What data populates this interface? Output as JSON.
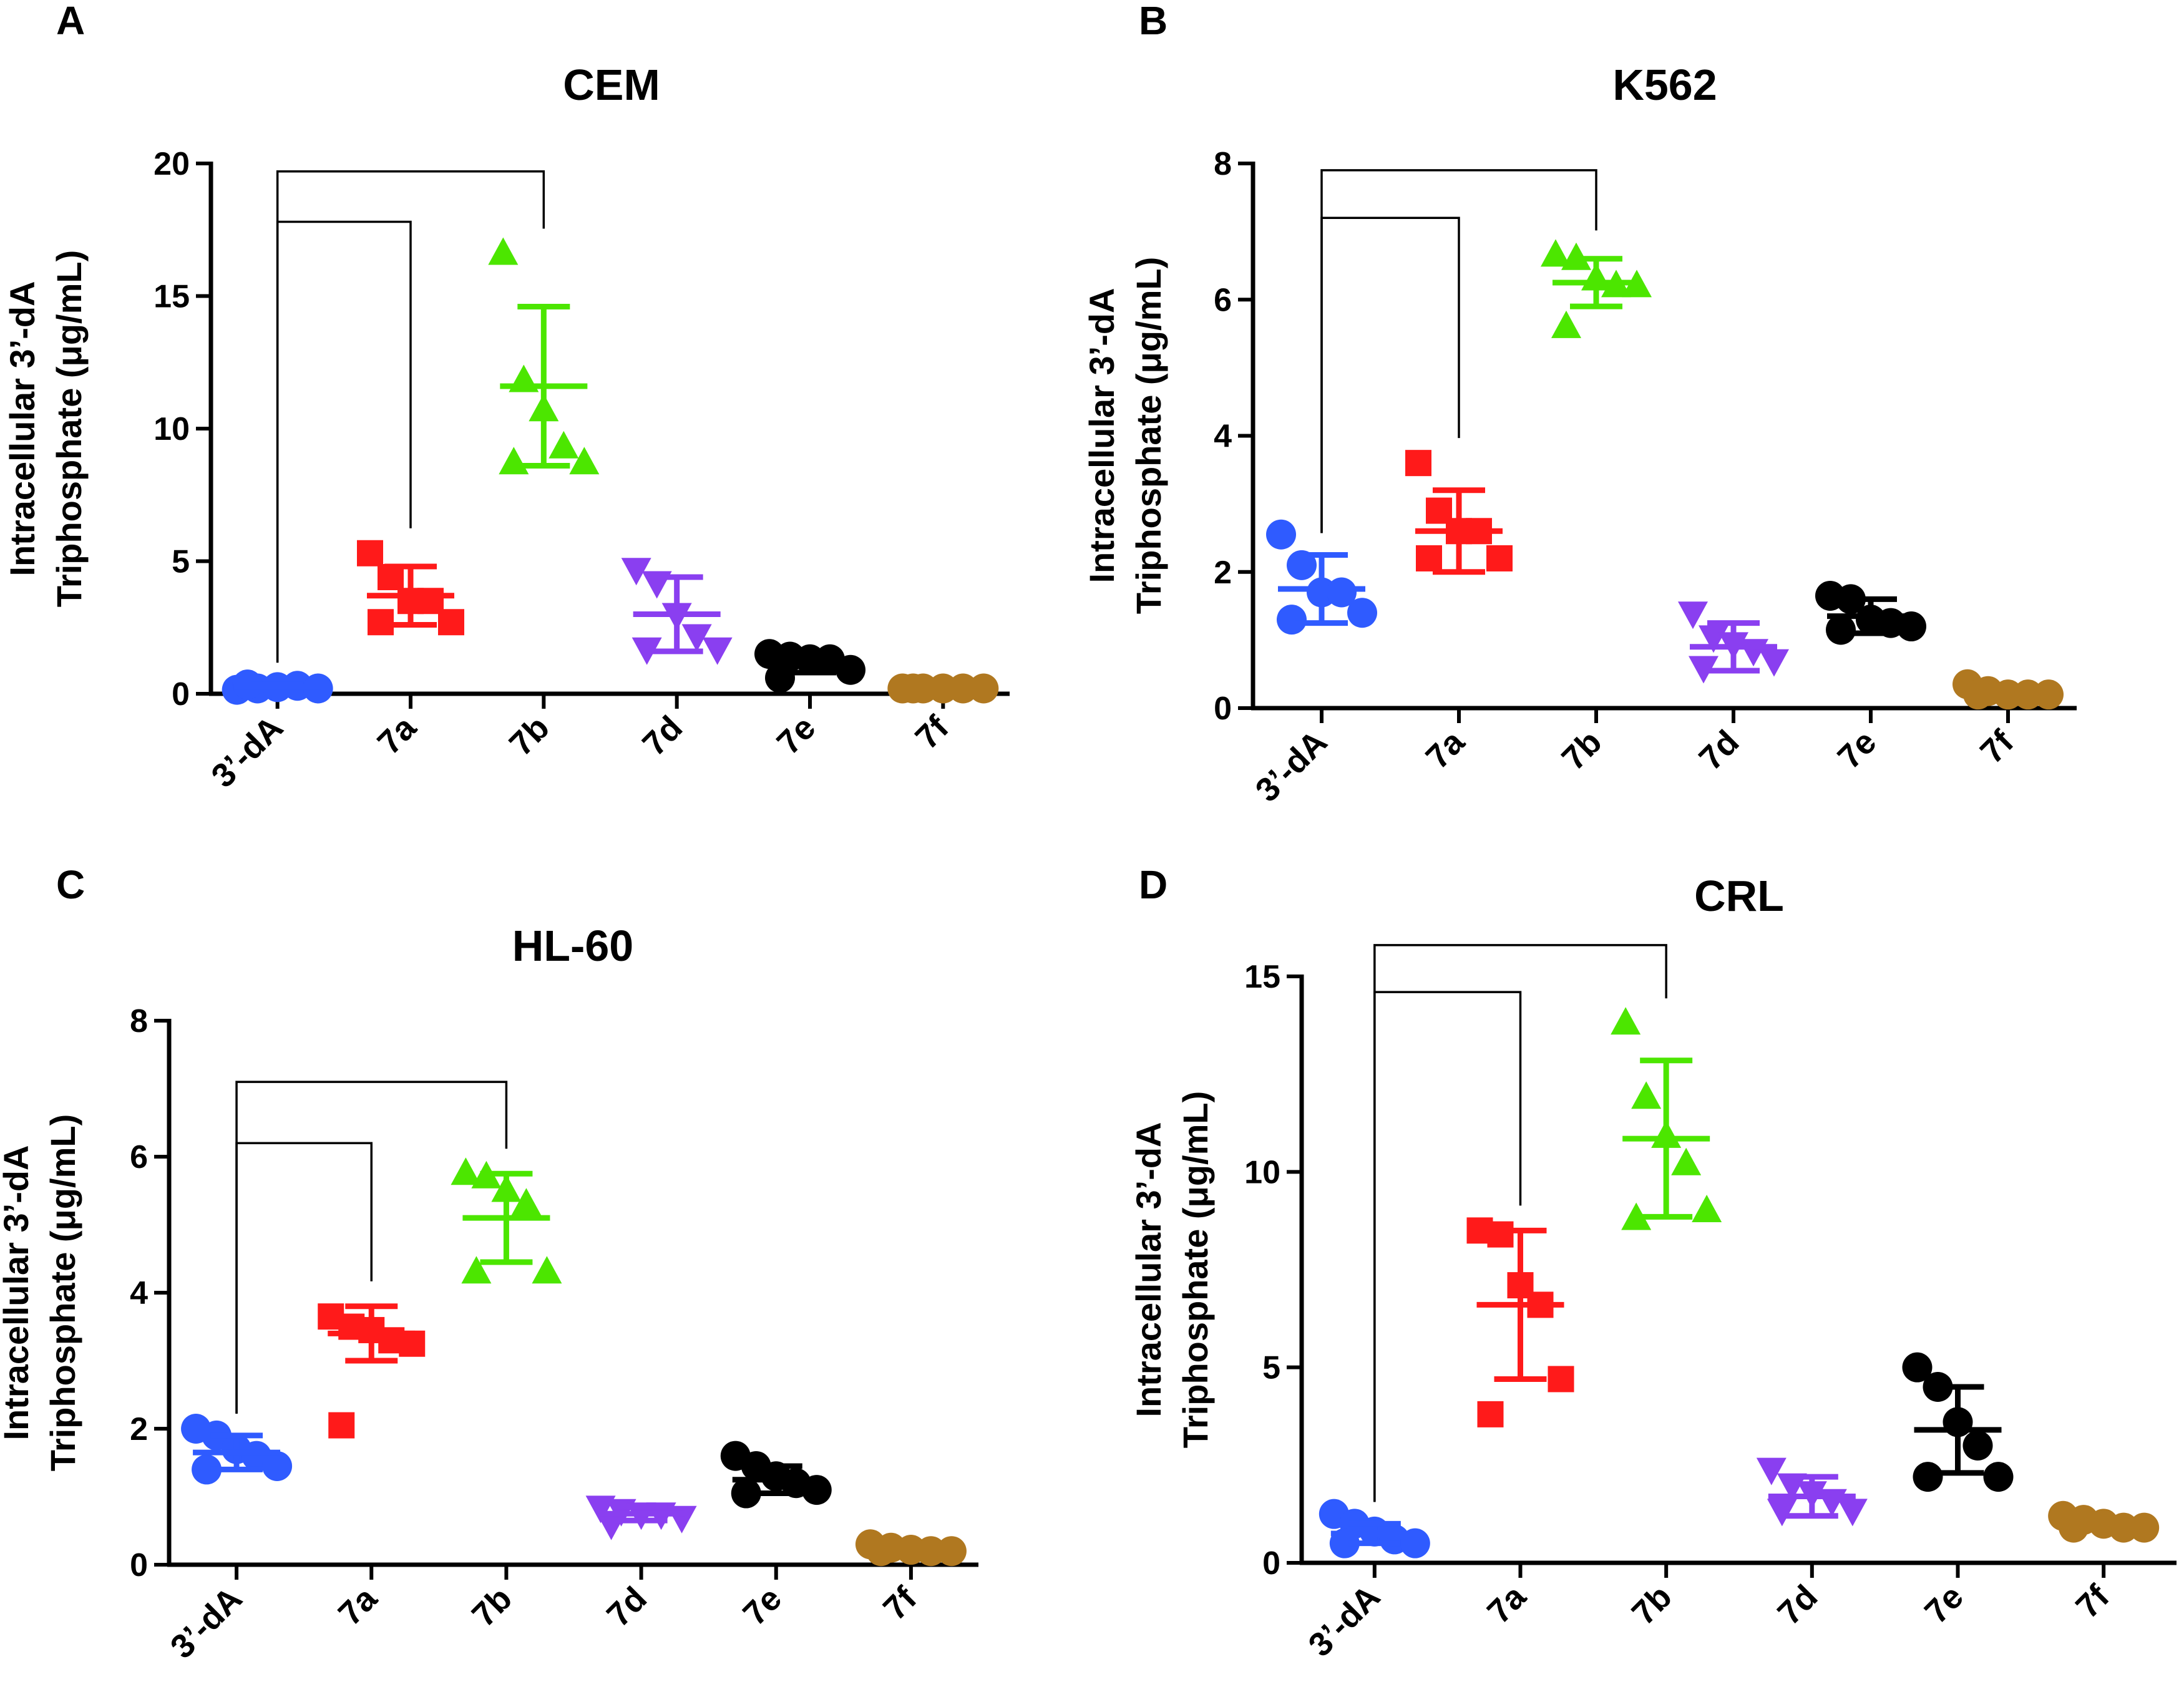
{
  "chart_data": [
    {
      "panel": "A",
      "type": "scatter",
      "title": "CEM",
      "ylabel_lines": [
        "Intracellular 3’-dA",
        "Triphosphate (μg/mL)"
      ],
      "xlabel": "",
      "categories": [
        "3’-dA",
        "7a",
        "7b",
        "7d",
        "7e",
        "7f"
      ],
      "ylim": [
        0,
        20
      ],
      "yticks": [
        0,
        5,
        10,
        15,
        20
      ],
      "grid": false,
      "series": [
        {
          "name": "3’-dA",
          "color": "#2f5bff",
          "marker": "circle",
          "mean": 0.25,
          "sd": 0.1,
          "points": [
            0.15,
            0.2,
            0.25,
            0.3,
            0.2,
            0.35
          ]
        },
        {
          "name": "7a",
          "color": "#ff1a1a",
          "marker": "square",
          "mean": 3.7,
          "sd": 1.1,
          "points": [
            5.3,
            4.4,
            3.5,
            3.5,
            2.7,
            2.7
          ]
        },
        {
          "name": "7b",
          "color": "#4ce600",
          "marker": "triangle-up",
          "mean": 11.6,
          "sd": 3.0,
          "points": [
            16.6,
            11.8,
            10.7,
            9.3,
            8.7,
            8.7
          ]
        },
        {
          "name": "7d",
          "color": "#8a3ff0",
          "marker": "triangle-down",
          "mean": 3.0,
          "sd": 1.4,
          "points": [
            4.7,
            4.2,
            3.0,
            2.2,
            1.7,
            1.7
          ]
        },
        {
          "name": "7e",
          "color": "#000000",
          "marker": "circle",
          "mean": 1.1,
          "sd": 0.3,
          "points": [
            1.5,
            1.4,
            1.3,
            1.3,
            0.9,
            0.6
          ]
        },
        {
          "name": "7f",
          "color": "#b07820",
          "marker": "circle",
          "mean": 0.2,
          "sd": 0.05,
          "points": [
            0.2,
            0.2,
            0.2,
            0.2,
            0.2,
            0.2
          ]
        }
      ],
      "brackets": [
        {
          "from": "3’-dA",
          "to": "7a",
          "y": 17.8
        },
        {
          "from": "3’-dA",
          "to": "7b",
          "y": 19.7
        }
      ]
    },
    {
      "panel": "B",
      "type": "scatter",
      "title": "K562",
      "ylabel_lines": [
        "Intracellular 3’-dA",
        "Triphosphate (μg/mL)"
      ],
      "xlabel": "",
      "categories": [
        "3’-dA",
        "7a",
        "7b",
        "7d",
        "7e",
        "7f"
      ],
      "ylim": [
        0,
        8
      ],
      "yticks": [
        0,
        2,
        4,
        6,
        8
      ],
      "grid": false,
      "series": [
        {
          "name": "3’-dA",
          "color": "#2f5bff",
          "marker": "circle",
          "mean": 1.75,
          "sd": 0.5,
          "points": [
            2.55,
            2.1,
            1.7,
            1.7,
            1.4,
            1.3
          ]
        },
        {
          "name": "7a",
          "color": "#ff1a1a",
          "marker": "square",
          "mean": 2.6,
          "sd": 0.6,
          "points": [
            3.6,
            2.9,
            2.6,
            2.6,
            2.2,
            2.2
          ]
        },
        {
          "name": "7b",
          "color": "#4ce600",
          "marker": "triangle-up",
          "mean": 6.25,
          "sd": 0.35,
          "points": [
            6.65,
            6.6,
            6.3,
            6.2,
            6.2,
            5.6
          ]
        },
        {
          "name": "7d",
          "color": "#8a3ff0",
          "marker": "triangle-down",
          "mean": 0.9,
          "sd": 0.35,
          "points": [
            1.4,
            1.05,
            0.95,
            0.85,
            0.7,
            0.6
          ]
        },
        {
          "name": "7e",
          "color": "#000000",
          "marker": "circle",
          "mean": 1.35,
          "sd": 0.25,
          "points": [
            1.65,
            1.6,
            1.3,
            1.25,
            1.2,
            1.15
          ]
        },
        {
          "name": "7f",
          "color": "#b07820",
          "marker": "circle",
          "mean": 0.25,
          "sd": 0.05,
          "points": [
            0.35,
            0.25,
            0.2,
            0.2,
            0.2,
            0.2
          ]
        }
      ],
      "brackets": [
        {
          "from": "3’-dA",
          "to": "7a",
          "y": 7.2
        },
        {
          "from": "3’-dA",
          "to": "7b",
          "y": 7.9
        }
      ]
    },
    {
      "panel": "C",
      "type": "scatter",
      "title": "HL-60",
      "ylabel_lines": [
        "Intracellular 3’-dA",
        "Triphosphate (μg/mL)"
      ],
      "xlabel": "",
      "categories": [
        "3’-dA",
        "7a",
        "7b",
        "7d",
        "7e",
        "7f"
      ],
      "ylim": [
        0,
        8
      ],
      "yticks": [
        0,
        2,
        4,
        6,
        8
      ],
      "grid": false,
      "series": [
        {
          "name": "3’-dA",
          "color": "#2f5bff",
          "marker": "circle",
          "mean": 1.65,
          "sd": 0.25,
          "points": [
            2.0,
            1.9,
            1.7,
            1.6,
            1.45,
            1.4
          ]
        },
        {
          "name": "7a",
          "color": "#ff1a1a",
          "marker": "square",
          "mean": 3.4,
          "sd": 0.4,
          "points": [
            3.65,
            3.5,
            3.45,
            3.3,
            3.25,
            2.05
          ]
        },
        {
          "name": "7b",
          "color": "#4ce600",
          "marker": "triangle-up",
          "mean": 5.1,
          "sd": 0.65,
          "points": [
            5.75,
            5.7,
            5.5,
            5.3,
            4.3,
            4.3
          ]
        },
        {
          "name": "7d",
          "color": "#8a3ff0",
          "marker": "triangle-down",
          "mean": 0.75,
          "sd": 0.1,
          "points": [
            0.85,
            0.8,
            0.75,
            0.75,
            0.7,
            0.6
          ]
        },
        {
          "name": "7e",
          "color": "#000000",
          "marker": "circle",
          "mean": 1.25,
          "sd": 0.2,
          "points": [
            1.6,
            1.45,
            1.3,
            1.2,
            1.1,
            1.05
          ]
        },
        {
          "name": "7f",
          "color": "#b07820",
          "marker": "circle",
          "mean": 0.22,
          "sd": 0.05,
          "points": [
            0.3,
            0.25,
            0.22,
            0.2,
            0.2,
            0.2
          ]
        }
      ],
      "brackets": [
        {
          "from": "3’-dA",
          "to": "7a",
          "y": 6.2
        },
        {
          "from": "3’-dA",
          "to": "7b",
          "y": 7.1
        }
      ]
    },
    {
      "panel": "D",
      "type": "scatter",
      "title": "CRL",
      "ylabel_lines": [
        "Intracellular 3’-dA",
        "Triphosphate (μg/mL)"
      ],
      "xlabel": "",
      "categories": [
        "3’-dA",
        "7a",
        "7b",
        "7d",
        "7e",
        "7f"
      ],
      "ylim": [
        0,
        15
      ],
      "yticks": [
        0,
        5,
        10,
        15
      ],
      "grid": false,
      "series": [
        {
          "name": "3’-dA",
          "color": "#2f5bff",
          "marker": "circle",
          "mean": 0.75,
          "sd": 0.25,
          "points": [
            1.25,
            1.0,
            0.8,
            0.6,
            0.5,
            0.5
          ]
        },
        {
          "name": "7a",
          "color": "#ff1a1a",
          "marker": "square",
          "mean": 6.6,
          "sd": 1.9,
          "points": [
            8.5,
            8.4,
            7.1,
            6.6,
            4.7,
            3.8
          ]
        },
        {
          "name": "7b",
          "color": "#4ce600",
          "marker": "triangle-up",
          "mean": 10.85,
          "sd": 2.0,
          "points": [
            13.8,
            11.9,
            10.9,
            10.2,
            9.0,
            8.8
          ]
        },
        {
          "name": "7d",
          "color": "#8a3ff0",
          "marker": "triangle-down",
          "mean": 1.7,
          "sd": 0.5,
          "points": [
            2.4,
            2.0,
            1.8,
            1.6,
            1.35,
            1.35
          ]
        },
        {
          "name": "7e",
          "color": "#000000",
          "marker": "circle",
          "mean": 3.4,
          "sd": 1.1,
          "points": [
            5.0,
            4.5,
            3.6,
            3.0,
            2.2,
            2.2
          ]
        },
        {
          "name": "7f",
          "color": "#b07820",
          "marker": "circle",
          "mean": 1.0,
          "sd": 0.15,
          "points": [
            1.2,
            1.1,
            1.0,
            0.9,
            0.9,
            0.9
          ]
        }
      ],
      "brackets": [
        {
          "from": "3’-dA",
          "to": "7a",
          "y": 14.6
        },
        {
          "from": "3’-dA",
          "to": "7b",
          "y": 15.8
        }
      ]
    }
  ]
}
